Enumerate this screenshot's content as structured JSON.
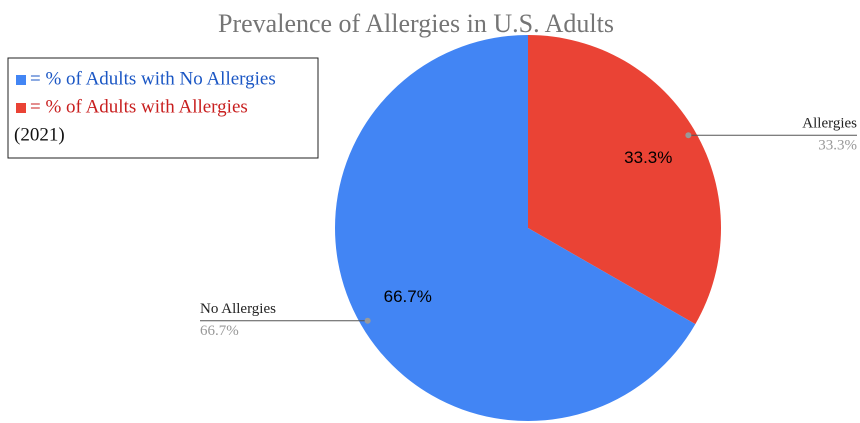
{
  "chart_data": {
    "type": "pie",
    "title": "Prevalence of Allergies in U.S. Adults",
    "categories": [
      "No Allergies",
      "Allergies"
    ],
    "values": [
      66.7,
      33.3
    ],
    "value_labels": [
      "66.7%",
      "33.3%"
    ],
    "colors": [
      "#4285f4",
      "#ea4335"
    ],
    "legend": {
      "entries": [
        "= % of Adults with No Allergies",
        "= % of Adults with Allergies"
      ],
      "note": "(2021)",
      "position": "upper left"
    }
  }
}
